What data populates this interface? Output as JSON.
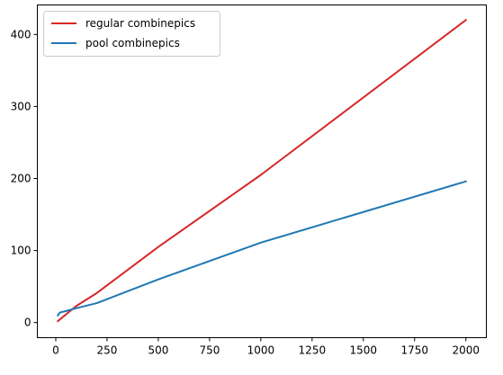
{
  "chart_data": {
    "type": "line",
    "title": "",
    "xlabel": "",
    "ylabel": "",
    "xlim": [
      -90,
      2100
    ],
    "ylim": [
      -21,
      441
    ],
    "x_ticks": [
      0,
      250,
      500,
      750,
      1000,
      1250,
      1500,
      1750,
      2000
    ],
    "y_ticks": [
      0,
      100,
      200,
      300,
      400
    ],
    "grid": false,
    "legend_position": "top-left",
    "series": [
      {
        "name": "regular combinepics",
        "color": "#d62728",
        "x": [
          10,
          100,
          200,
          500,
          1000,
          2000
        ],
        "y": [
          2,
          23,
          41,
          105,
          205,
          420
        ]
      },
      {
        "name": "pool combinepics",
        "color": "#1f77b4",
        "x": [
          10,
          20,
          50,
          100,
          200,
          500,
          1000,
          2000
        ],
        "y": [
          10,
          14,
          16,
          20,
          27,
          60,
          111,
          196
        ]
      }
    ]
  }
}
